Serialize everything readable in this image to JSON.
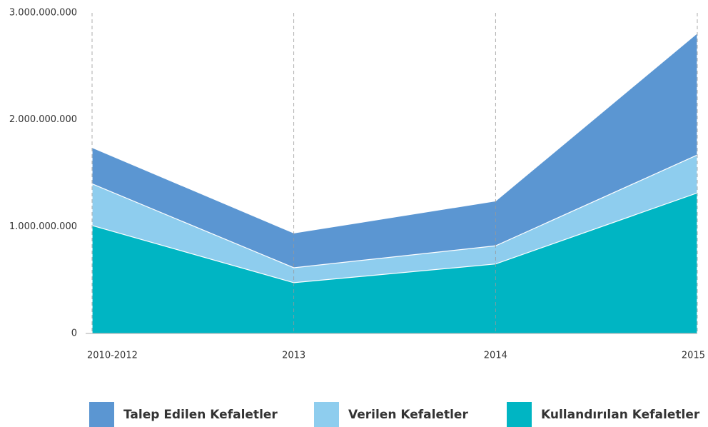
{
  "chart_data": {
    "type": "area",
    "categories": [
      "2010-2012",
      "2013",
      "2014",
      "2015"
    ],
    "series": [
      {
        "name": "Talep Edilen Kefaletler",
        "color": "#5b96d2",
        "values": [
          1740000000,
          940000000,
          1240000000,
          2810000000
        ]
      },
      {
        "name": "Verilen Kefaletler",
        "color": "#8ecdee",
        "values": [
          1400000000,
          615000000,
          820000000,
          1670000000
        ]
      },
      {
        "name": "Kullandırılan Kefaletler",
        "color": "#00b5c3",
        "values": [
          1010000000,
          475000000,
          650000000,
          1315000000
        ]
      }
    ],
    "ylim": [
      0,
      3000000000
    ],
    "yticks": [
      0,
      {
        "value": 1000000000,
        "label": "1.000.000.000"
      },
      {
        "value": 2000000000,
        "label": "2.000.000.000"
      },
      {
        "value": 3000000000,
        "label": "3.000.000.000"
      }
    ],
    "grid": true,
    "legend": "bottom"
  }
}
